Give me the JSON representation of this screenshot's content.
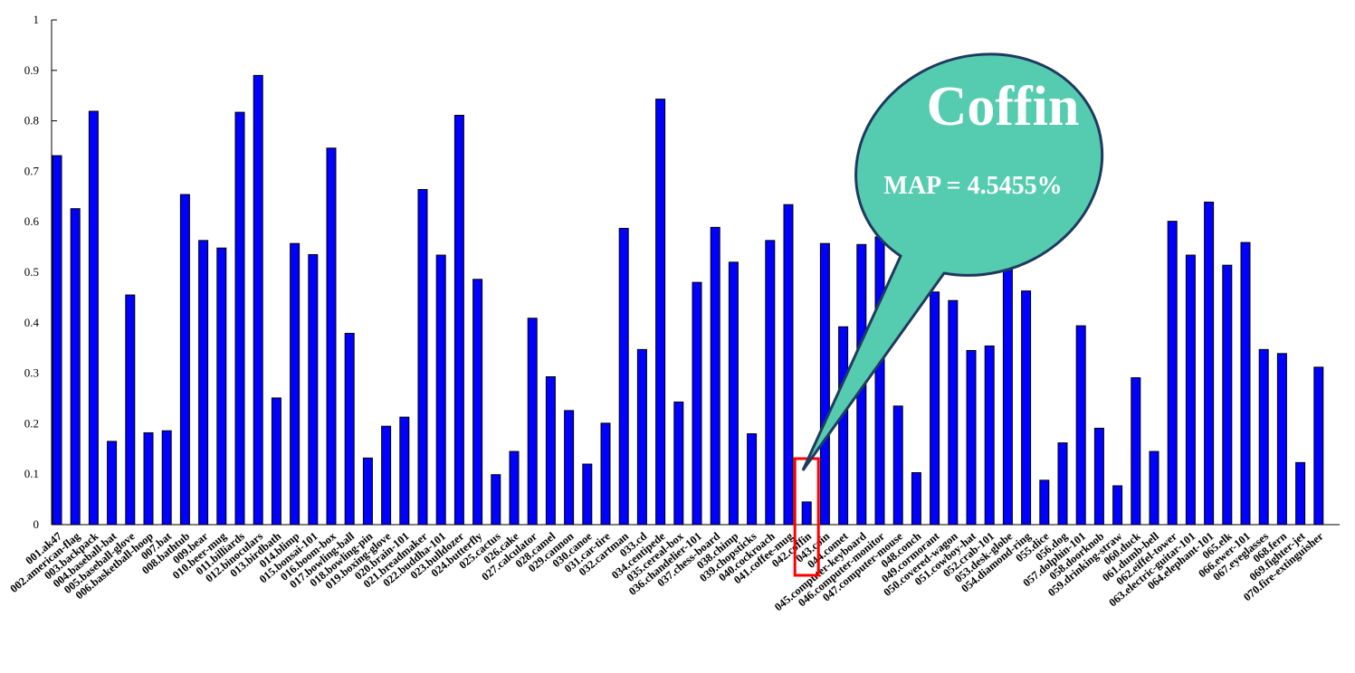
{
  "chart_data": {
    "type": "bar",
    "title": "",
    "xlabel": "",
    "ylabel": "",
    "ylim": [
      0,
      1
    ],
    "yticks": [
      "0",
      "0.1",
      "0.2",
      "0.3",
      "0.4",
      "0.5",
      "0.6",
      "0.7",
      "0.8",
      "0.9",
      "1"
    ],
    "bar_color": "#0000ff",
    "grid": false,
    "categories": [
      "001.ak47",
      "002.american-flag",
      "003.backpack",
      "004.baseball-bat",
      "005.baseball-glove",
      "006.basketball-hoop",
      "007.bat",
      "008.bathtub",
      "009.bear",
      "010.beer-mug",
      "011.billiards",
      "012.binoculars",
      "013.birdbath",
      "014.blimp",
      "015.bonsai-101",
      "016.boom-box",
      "017.bowling-ball",
      "018.bowling-pin",
      "019.boxing-glove",
      "020.brain-101",
      "021.breadmaker",
      "022.buddha-101",
      "023.bulldozer",
      "024.butterfly",
      "025.cactus",
      "026.cake",
      "027.calculator",
      "028.camel",
      "029.cannon",
      "030.canoe",
      "031.car-tire",
      "032.cartman",
      "033.cd",
      "034.centipede",
      "035.cereal-box",
      "036.chandelier-101",
      "037.chess-board",
      "038.chimp",
      "039.chopsticks",
      "040.cockroach",
      "041.coffee-mug",
      "042.coffin",
      "043.coin",
      "044.comet",
      "045.computer-keyboard",
      "046.computer-monitor",
      "047.computer-mouse",
      "048.conch",
      "049.cormorant",
      "050.covered-wagon",
      "051.cowboy-hat",
      "052.crab-101",
      "053.desk-globe",
      "054.diamond-ring",
      "055.dice",
      "056.dog",
      "057.dolphin-101",
      "058.doorknob",
      "059.drinking-straw",
      "060.duck",
      "061.dumb-bell",
      "062.eiffel-tower",
      "063.electric-guitar-101",
      "064.elephant-101",
      "065.elk",
      "066.ewer-101",
      "067.eyeglasses",
      "068.fern",
      "069.fighter-jet",
      "070.fire-extinguisher"
    ],
    "values": [
      0.731,
      0.626,
      0.819,
      0.165,
      0.455,
      0.182,
      0.186,
      0.654,
      0.563,
      0.548,
      0.817,
      0.89,
      0.251,
      0.557,
      0.535,
      0.746,
      0.379,
      0.132,
      0.195,
      0.213,
      0.664,
      0.534,
      0.811,
      0.486,
      0.099,
      0.145,
      0.409,
      0.293,
      0.226,
      0.12,
      0.201,
      0.587,
      0.347,
      0.843,
      0.243,
      0.48,
      0.589,
      0.52,
      0.18,
      0.563,
      0.634,
      0.045,
      0.557,
      0.392,
      0.555,
      0.57,
      0.235,
      0.103,
      0.461,
      0.444,
      0.345,
      0.354,
      0.512,
      0.463,
      0.088,
      0.162,
      0.394,
      0.191,
      0.077,
      0.291,
      0.145,
      0.601,
      0.534,
      0.639,
      0.514,
      0.559,
      0.347,
      0.339,
      0.123,
      0.312
    ],
    "annotations": {
      "highlight_category": "042.coffin",
      "highlight_color": "#ff0000",
      "callout_title": "Coffin",
      "callout_text": "MAP = 4.5455%",
      "callout_fill": "#55ccb0",
      "callout_stroke": "#1f3a5f"
    }
  }
}
